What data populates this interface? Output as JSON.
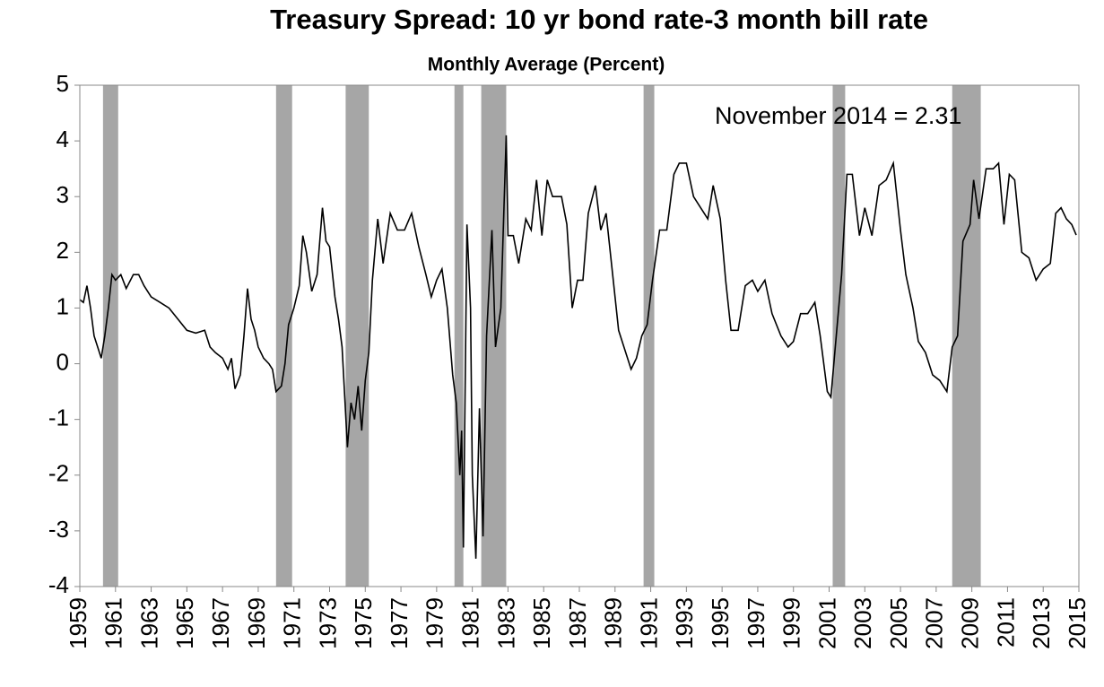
{
  "chart_data": {
    "type": "line",
    "title": "Treasury Spread: 10 yr bond rate-3 month bill rate",
    "subtitle": "Monthly Average (Percent)",
    "annotation": "November 2014 = 2.31",
    "color": "#000000",
    "shade_color": "#a6a6a6",
    "shaded_periods": [
      [
        1960.3,
        1961.15
      ],
      [
        1970.0,
        1970.9
      ],
      [
        1973.9,
        1975.2
      ],
      [
        1980.0,
        1980.5
      ],
      [
        1981.5,
        1982.9
      ],
      [
        1990.6,
        1991.2
      ],
      [
        2001.2,
        2001.9
      ],
      [
        2007.9,
        2009.5
      ]
    ],
    "x": [
      1959.0,
      1959.2,
      1959.4,
      1959.6,
      1959.8,
      1960.0,
      1960.2,
      1960.4,
      1960.6,
      1960.8,
      1961.0,
      1961.3,
      1961.6,
      1962.0,
      1962.3,
      1962.6,
      1963.0,
      1963.5,
      1964.0,
      1964.5,
      1965.0,
      1965.5,
      1966.0,
      1966.3,
      1966.6,
      1967.0,
      1967.3,
      1967.5,
      1967.7,
      1968.0,
      1968.2,
      1968.4,
      1968.6,
      1968.8,
      1969.0,
      1969.3,
      1969.6,
      1969.8,
      1970.0,
      1970.3,
      1970.5,
      1970.7,
      1971.0,
      1971.3,
      1971.5,
      1971.7,
      1972.0,
      1972.3,
      1972.6,
      1972.8,
      1973.0,
      1973.3,
      1973.5,
      1973.7,
      1974.0,
      1974.2,
      1974.4,
      1974.6,
      1974.8,
      1975.0,
      1975.2,
      1975.4,
      1975.7,
      1976.0,
      1976.4,
      1976.8,
      1977.2,
      1977.6,
      1978.0,
      1978.4,
      1978.7,
      1979.0,
      1979.3,
      1979.6,
      1979.9,
      1980.1,
      1980.3,
      1980.4,
      1980.5,
      1980.7,
      1980.9,
      1981.0,
      1981.2,
      1981.4,
      1981.6,
      1981.8,
      1982.1,
      1982.3,
      1982.6,
      1982.9,
      1983.0,
      1983.3,
      1983.6,
      1984.0,
      1984.3,
      1984.6,
      1984.9,
      1985.2,
      1985.5,
      1986.0,
      1986.3,
      1986.6,
      1986.9,
      1987.2,
      1987.5,
      1987.9,
      1988.2,
      1988.5,
      1988.9,
      1989.2,
      1989.6,
      1989.9,
      1990.2,
      1990.5,
      1990.8,
      1991.1,
      1991.5,
      1991.9,
      1992.3,
      1992.6,
      1993.0,
      1993.4,
      1993.8,
      1994.2,
      1994.5,
      1994.9,
      1995.2,
      1995.5,
      1995.9,
      1996.3,
      1996.7,
      1997.0,
      1997.4,
      1997.8,
      1998.3,
      1998.7,
      1999.0,
      1999.4,
      1999.8,
      2000.2,
      2000.5,
      2000.9,
      2001.1,
      2001.4,
      2001.7,
      2002.0,
      2002.3,
      2002.7,
      2003.0,
      2003.4,
      2003.8,
      2004.2,
      2004.6,
      2005.0,
      2005.3,
      2005.7,
      2006.0,
      2006.4,
      2006.8,
      2007.2,
      2007.6,
      2007.9,
      2008.2,
      2008.5,
      2008.9,
      2009.1,
      2009.4,
      2009.8,
      2010.2,
      2010.5,
      2010.8,
      2011.1,
      2011.4,
      2011.8,
      2012.2,
      2012.6,
      2013.0,
      2013.4,
      2013.7,
      2014.0,
      2014.3,
      2014.6,
      2014.85
    ],
    "values": [
      1.15,
      1.1,
      1.4,
      1.0,
      0.5,
      0.3,
      0.1,
      0.5,
      1.0,
      1.6,
      1.5,
      1.6,
      1.35,
      1.6,
      1.6,
      1.4,
      1.2,
      1.1,
      1.0,
      0.8,
      0.6,
      0.55,
      0.6,
      0.3,
      0.2,
      0.1,
      -0.1,
      0.1,
      -0.45,
      -0.2,
      0.5,
      1.35,
      0.8,
      0.6,
      0.3,
      0.1,
      0.0,
      -0.1,
      -0.5,
      -0.4,
      0.0,
      0.7,
      1.0,
      1.4,
      2.3,
      2.0,
      1.3,
      1.6,
      2.8,
      2.2,
      2.1,
      1.2,
      0.8,
      0.3,
      -1.5,
      -0.7,
      -1.0,
      -0.4,
      -1.2,
      -0.3,
      0.2,
      1.5,
      2.6,
      1.8,
      2.7,
      2.4,
      2.4,
      2.7,
      2.1,
      1.6,
      1.2,
      1.5,
      1.7,
      1.0,
      -0.2,
      -0.7,
      -2.0,
      -1.2,
      -3.3,
      2.5,
      1.0,
      -2.0,
      -3.5,
      -0.8,
      -3.1,
      0.5,
      2.4,
      0.3,
      1.0,
      4.1,
      2.3,
      2.3,
      1.8,
      2.6,
      2.4,
      3.3,
      2.3,
      3.3,
      3.0,
      3.0,
      2.5,
      1.0,
      1.5,
      1.5,
      2.7,
      3.2,
      2.4,
      2.7,
      1.5,
      0.6,
      0.2,
      -0.1,
      0.1,
      0.5,
      0.7,
      1.5,
      2.4,
      2.4,
      3.4,
      3.6,
      3.6,
      3.0,
      2.8,
      2.6,
      3.2,
      2.6,
      1.5,
      0.6,
      0.6,
      1.4,
      1.5,
      1.3,
      1.5,
      0.9,
      0.5,
      0.3,
      0.4,
      0.9,
      0.9,
      1.1,
      0.5,
      -0.5,
      -0.6,
      0.5,
      1.6,
      3.4,
      3.4,
      2.3,
      2.8,
      2.3,
      3.2,
      3.3,
      3.6,
      2.4,
      1.6,
      1.0,
      0.4,
      0.2,
      -0.2,
      -0.3,
      -0.5,
      0.3,
      0.5,
      2.2,
      2.5,
      3.3,
      2.6,
      3.5,
      3.5,
      3.6,
      2.5,
      3.4,
      3.3,
      2.0,
      1.9,
      1.5,
      1.7,
      1.8,
      2.7,
      2.8,
      2.6,
      2.5,
      2.31
    ],
    "xlim": [
      1959,
      2015
    ],
    "xticks": [
      1959,
      1961,
      1963,
      1965,
      1967,
      1969,
      1971,
      1973,
      1975,
      1977,
      1979,
      1981,
      1983,
      1985,
      1987,
      1989,
      1991,
      1993,
      1995,
      1997,
      1999,
      2001,
      2003,
      2005,
      2007,
      2009,
      2011,
      2013,
      2015
    ],
    "ylim": [
      -4,
      5
    ],
    "yticks": [
      -4,
      -3,
      -2,
      -1,
      0,
      1,
      2,
      3,
      4,
      5
    ]
  }
}
